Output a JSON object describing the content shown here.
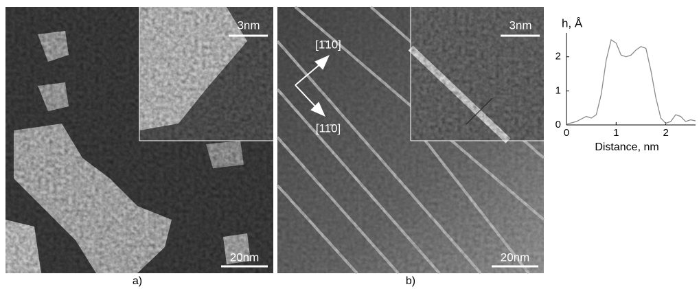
{
  "panels": [
    {
      "label": "a)",
      "scale_bar": "20nm",
      "inset_scale_bar": "3nm"
    },
    {
      "label": "b)",
      "scale_bar": "20nm",
      "inset_scale_bar": "3nm",
      "directions": [
        "[1̄10]",
        "[11̄0]"
      ]
    }
  ],
  "chart_data": {
    "type": "line",
    "ylabel": "h, Å",
    "xlabel": "Distance, nm",
    "x": [
      0,
      0.2,
      0.4,
      0.5,
      0.6,
      0.7,
      0.8,
      0.9,
      1.0,
      1.1,
      1.2,
      1.3,
      1.4,
      1.5,
      1.6,
      1.7,
      1.8,
      1.9,
      2.0,
      2.1,
      2.2,
      2.3,
      2.4,
      2.5,
      2.6
    ],
    "values": [
      0.02,
      0.1,
      0.25,
      0.2,
      0.3,
      0.9,
      1.9,
      2.5,
      2.4,
      2.05,
      2.0,
      2.05,
      2.2,
      2.3,
      2.25,
      1.6,
      0.8,
      0.2,
      0.05,
      0.1,
      0.3,
      0.25,
      0.1,
      0.15,
      0.12
    ],
    "color": "#8a8a8a",
    "xlim": [
      0,
      2.6
    ],
    "xticks": [
      0,
      1,
      2
    ],
    "ylim": [
      0,
      2.7
    ],
    "yticks": [
      0,
      1,
      2
    ]
  }
}
